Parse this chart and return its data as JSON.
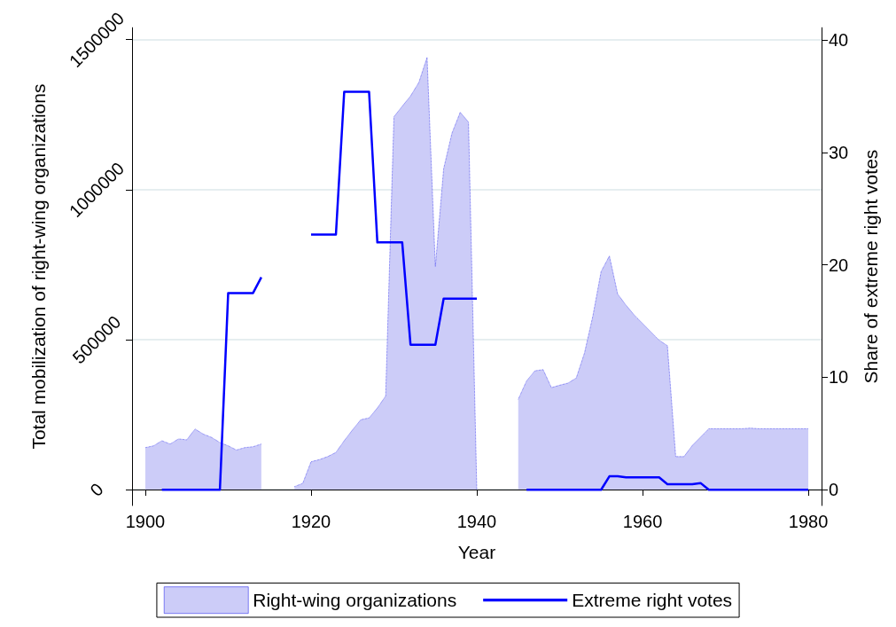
{
  "chart_data": {
    "type": "area",
    "xlabel": "Year",
    "ylabel": "Total mobilization of right-wing organizations",
    "y2label": "Share of extreme right votes",
    "x": [
      1900,
      1901,
      1902,
      1903,
      1904,
      1905,
      1906,
      1907,
      1908,
      1909,
      1910,
      1911,
      1912,
      1913,
      1914,
      1915,
      1916,
      1917,
      1918,
      1919,
      1920,
      1921,
      1922,
      1923,
      1924,
      1925,
      1926,
      1927,
      1928,
      1929,
      1930,
      1931,
      1932,
      1933,
      1934,
      1935,
      1936,
      1937,
      1938,
      1939,
      1940,
      1941,
      1942,
      1943,
      1944,
      1945,
      1946,
      1947,
      1948,
      1949,
      1950,
      1951,
      1952,
      1953,
      1954,
      1955,
      1956,
      1957,
      1958,
      1959,
      1960,
      1961,
      1962,
      1963,
      1964,
      1965,
      1966,
      1967,
      1968,
      1969,
      1970,
      1971,
      1972,
      1973,
      1974,
      1975,
      1976,
      1977,
      1978,
      1979,
      1980
    ],
    "series": [
      {
        "name": "Right-wing organizations",
        "color": "#ccccf8",
        "line_style": "dotted",
        "values": [
          140000,
          146000,
          163000,
          152000,
          169000,
          166000,
          202000,
          185000,
          174000,
          157000,
          146000,
          132000,
          140000,
          143000,
          152000,
          null,
          null,
          null,
          10000,
          21000,
          93000,
          100000,
          110000,
          124000,
          163000,
          199000,
          233000,
          239000,
          272000,
          312000,
          1243000,
          1278000,
          1312000,
          1357000,
          1441000,
          744000,
          1070000,
          1188000,
          1258000,
          1225000,
          0,
          null,
          null,
          null,
          null,
          301000,
          362000,
          396000,
          400000,
          340000,
          348000,
          355000,
          372000,
          456000,
          578000,
          727000,
          779000,
          652000,
          615000,
          582000,
          554000,
          526000,
          498000,
          480000,
          110000,
          110000,
          147000,
          175000,
          203000,
          203000,
          203000,
          203000,
          203000,
          205000,
          203000,
          203000,
          203000,
          203000,
          203000,
          203000,
          203000
        ]
      },
      {
        "name": "Extreme right votes",
        "type": "line",
        "axis": "y2",
        "color": "#0000ff",
        "line_style": "solid",
        "values": [
          null,
          null,
          0,
          0,
          0,
          0,
          0,
          0,
          0,
          0,
          17.5,
          17.5,
          17.5,
          17.5,
          18.9,
          null,
          null,
          null,
          null,
          null,
          22.7,
          22.7,
          22.7,
          22.7,
          35.4,
          35.4,
          35.4,
          35.4,
          22.0,
          22.0,
          22.0,
          22.0,
          12.9,
          12.9,
          12.9,
          12.9,
          17.0,
          17.0,
          17.0,
          17.0,
          17.0,
          null,
          null,
          null,
          null,
          null,
          0,
          0,
          0,
          0,
          0,
          0,
          0,
          0,
          0,
          0,
          1.2,
          1.2,
          1.1,
          1.1,
          1.1,
          1.1,
          1.1,
          0.5,
          0.5,
          0.5,
          0.5,
          0.6,
          0,
          0,
          0,
          0,
          0,
          0,
          0,
          0,
          0,
          0,
          0,
          0,
          0
        ]
      }
    ],
    "xlim": [
      1898.4,
      1981.6
    ],
    "xticks": [
      1900,
      1920,
      1940,
      1960,
      1980
    ],
    "ylim": [
      -53000,
      1540000
    ],
    "yticks": [
      0,
      500000,
      1000000,
      1500000
    ],
    "y2lim": [
      -1.4,
      41.1
    ],
    "y2ticks": [
      0,
      10,
      20,
      30,
      40
    ],
    "grid": "y",
    "legend": "bottom"
  }
}
